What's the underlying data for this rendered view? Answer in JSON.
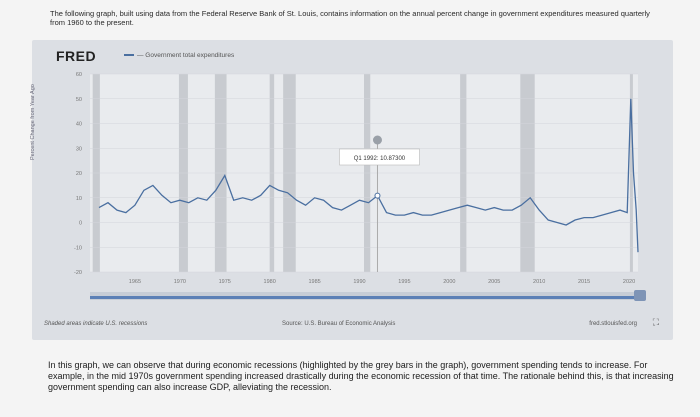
{
  "intro_text": "The following graph, built using data from the Federal Reserve Bank of St. Louis, contains information on the annual percent change in government expenditures measured quarterly from 1960 to the present.",
  "fred": {
    "logo": "FRED",
    "legend_label": "— Government total expenditures",
    "y_axis_label": "Percent Change from Year Ago",
    "tooltip": "Q1 1992: 10.87300",
    "shaded_note": "Shaded areas indicate U.S. recessions",
    "source": "Source: U.S. Bureau of Economic Analysis",
    "site": "fred.stlouisfed.org",
    "expand_icon": "expand-icon"
  },
  "conclusion_text": "In this graph, we can observe that during economic recessions (highlighted by the grey bars in the graph), government spending tends to increase. For example, in the mid 1970s government spending increased drastically during the economic recession of that time. The rationale behind this, is that increasing government spending can also increase GDP, alleviating the recession.",
  "chart_data": {
    "type": "line",
    "title": "",
    "xlabel": "",
    "ylabel": "Percent Change from Year Ago",
    "xlim": [
      1960,
      2021
    ],
    "ylim": [
      -20,
      60
    ],
    "yticks": [
      -20,
      -10,
      0,
      10,
      20,
      30,
      40,
      50,
      60
    ],
    "xticks": [
      1965,
      1970,
      1975,
      1980,
      1985,
      1990,
      1995,
      2000,
      2005,
      2010,
      2015,
      2020
    ],
    "grid": true,
    "legend": "top-left",
    "colors": {
      "line": "#4a6fa0",
      "recession": "#c8cbd0",
      "panel": "#e9ebee"
    },
    "recessions": [
      [
        1960.3,
        1961.1
      ],
      [
        1969.9,
        1970.9
      ],
      [
        1973.9,
        1975.2
      ],
      [
        1980.0,
        1980.5
      ],
      [
        1981.5,
        1982.9
      ],
      [
        1990.5,
        1991.2
      ],
      [
        2001.2,
        2001.9
      ],
      [
        2007.9,
        2009.5
      ],
      [
        2020.1,
        2020.4
      ]
    ],
    "highlight": {
      "x": 1992.0,
      "y": 10.873
    },
    "series": [
      {
        "x": [
          1961,
          1962,
          1963,
          1964,
          1965,
          1966,
          1967,
          1968,
          1969,
          1970,
          1971,
          1972,
          1973,
          1974,
          1975,
          1976,
          1977,
          1978,
          1979,
          1980,
          1981,
          1982,
          1983,
          1984,
          1985,
          1986,
          1987,
          1988,
          1989,
          1990,
          1991,
          1992,
          1993,
          1994,
          1995,
          1996,
          1997,
          1998,
          1999,
          2000,
          2001,
          2002,
          2003,
          2004,
          2005,
          2006,
          2007,
          2008,
          2009,
          2010,
          2011,
          2012,
          2013,
          2014,
          2015,
          2016,
          2017,
          2018,
          2019,
          2019.8,
          2020.2,
          2020.5,
          2020.8,
          2021
        ],
        "values": [
          6,
          8,
          5,
          4,
          7,
          13,
          15,
          11,
          8,
          9,
          8,
          10,
          9,
          13,
          19,
          9,
          10,
          9,
          11,
          15,
          13,
          12,
          9,
          7,
          10,
          9,
          6,
          5,
          7,
          9,
          8,
          10.873,
          4,
          3,
          3,
          4,
          3,
          3,
          4,
          5,
          6,
          7,
          6,
          5,
          6,
          5,
          5,
          7,
          10,
          5,
          1,
          0,
          -1,
          1,
          2,
          2,
          3,
          4,
          5,
          4,
          50,
          20,
          5,
          -12
        ]
      }
    ]
  }
}
